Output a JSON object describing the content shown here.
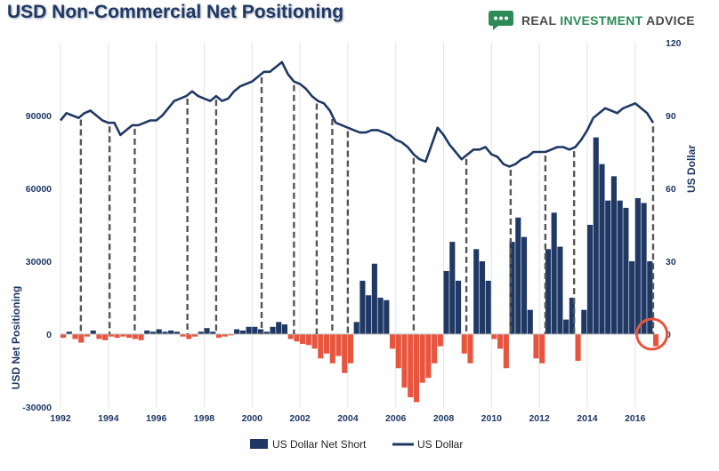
{
  "header": {
    "title": "USD Non-Commercial Net Positioning",
    "brand": {
      "word1": "REAL",
      "word2": "INVESTMENT",
      "word3": "ADVICE",
      "icon": "speech-bubble-icon"
    }
  },
  "colors": {
    "navy": "#1f3864",
    "red": "#e8553f",
    "grid": "#e3e3e3",
    "highlight": "#e8553f"
  },
  "chart_data": {
    "type": "bar+line",
    "title": "USD Non-Commercial Net Positioning",
    "xlabel": "",
    "ylabel_left": "USD Net Positioning",
    "ylabel_right": "US Dollar",
    "xlim": [
      1992,
      2016.9
    ],
    "ylim_left": [
      -30000,
      120000
    ],
    "ylim_right": [
      -30,
      120
    ],
    "x_ticks": [
      "1992",
      "1994",
      "1996",
      "1998",
      "2000",
      "2002",
      "2004",
      "2006",
      "2008",
      "2010",
      "2012",
      "2014",
      "2016"
    ],
    "y_left_ticks": [
      "-30000",
      "0",
      "30000",
      "60000",
      "90000"
    ],
    "y_right_ticks": [
      "0",
      "30",
      "60",
      "90",
      "120"
    ],
    "legend": [
      "US Dollar Net Short",
      "US Dollar"
    ],
    "series": [
      {
        "name": "US Dollar Net Short",
        "kind": "bar",
        "axis": "left",
        "x": [
          1992.0,
          1992.25,
          1992.5,
          1992.75,
          1993.0,
          1993.25,
          1993.5,
          1993.75,
          1994.0,
          1994.25,
          1994.5,
          1994.75,
          1995.0,
          1995.25,
          1995.5,
          1995.75,
          1996.0,
          1996.25,
          1996.5,
          1996.75,
          1997.0,
          1997.25,
          1997.5,
          1997.75,
          1998.0,
          1998.25,
          1998.5,
          1998.75,
          1999.0,
          1999.25,
          1999.5,
          1999.75,
          2000.0,
          2000.25,
          2000.5,
          2000.75,
          2001.0,
          2001.25,
          2001.5,
          2001.75,
          2002.0,
          2002.25,
          2002.5,
          2002.75,
          2003.0,
          2003.25,
          2003.5,
          2003.75,
          2004.0,
          2004.25,
          2004.5,
          2004.75,
          2005.0,
          2005.25,
          2005.5,
          2005.75,
          2006.0,
          2006.25,
          2006.5,
          2006.75,
          2007.0,
          2007.25,
          2007.5,
          2007.75,
          2008.0,
          2008.25,
          2008.5,
          2008.75,
          2009.0,
          2009.25,
          2009.5,
          2009.75,
          2010.0,
          2010.25,
          2010.5,
          2010.75,
          2011.0,
          2011.25,
          2011.5,
          2011.75,
          2012.0,
          2012.25,
          2012.5,
          2012.75,
          2013.0,
          2013.25,
          2013.5,
          2013.75,
          2014.0,
          2014.25,
          2014.5,
          2014.75,
          2015.0,
          2015.25,
          2015.5,
          2015.75,
          2016.0,
          2016.25,
          2016.5,
          2016.75
        ],
        "values": [
          -1500,
          1000,
          -2000,
          -3500,
          -1000,
          1500,
          -2000,
          -2500,
          -1000,
          -1500,
          -1000,
          -1500,
          -2000,
          -2500,
          1500,
          1000,
          2000,
          1000,
          1500,
          1000,
          -1000,
          -2000,
          -1000,
          1000,
          2500,
          1000,
          -1500,
          -1000,
          -500,
          2000,
          1500,
          3000,
          3000,
          2000,
          1000,
          3000,
          5000,
          4000,
          -2000,
          -3000,
          -4000,
          -4500,
          -6000,
          -10000,
          -8000,
          -12000,
          -9000,
          -16000,
          -12000,
          5000,
          22000,
          16000,
          29000,
          15000,
          14000,
          -6000,
          -14000,
          -22000,
          -26000,
          -28000,
          -20000,
          -18000,
          -12000,
          -5000,
          26000,
          38000,
          22000,
          -8000,
          -12000,
          35000,
          30000,
          22000,
          -2000,
          -6000,
          -14000,
          38000,
          48000,
          40000,
          10000,
          -10000,
          -12000,
          35000,
          50000,
          36000,
          6000,
          15000,
          -11000,
          10000,
          45000,
          81000,
          70000,
          55000,
          65000,
          55000,
          52000,
          30000,
          56000,
          54000,
          30000,
          -5000
        ]
      },
      {
        "name": "US Dollar",
        "kind": "line",
        "axis": "right",
        "x": [
          1992.0,
          1992.25,
          1992.5,
          1992.75,
          1993.0,
          1993.25,
          1993.5,
          1993.75,
          1994.0,
          1994.25,
          1994.5,
          1994.75,
          1995.0,
          1995.25,
          1995.5,
          1995.75,
          1996.0,
          1996.25,
          1996.5,
          1996.75,
          1997.0,
          1997.25,
          1997.5,
          1997.75,
          1998.0,
          1998.25,
          1998.5,
          1998.75,
          1999.0,
          1999.25,
          1999.5,
          1999.75,
          2000.0,
          2000.25,
          2000.5,
          2000.75,
          2001.0,
          2001.25,
          2001.5,
          2001.75,
          2002.0,
          2002.25,
          2002.5,
          2002.75,
          2003.0,
          2003.25,
          2003.5,
          2003.75,
          2004.0,
          2004.25,
          2004.5,
          2004.75,
          2005.0,
          2005.25,
          2005.5,
          2005.75,
          2006.0,
          2006.25,
          2006.5,
          2006.75,
          2007.0,
          2007.25,
          2007.5,
          2007.75,
          2008.0,
          2008.25,
          2008.5,
          2008.75,
          2009.0,
          2009.25,
          2009.5,
          2009.75,
          2010.0,
          2010.25,
          2010.5,
          2010.75,
          2011.0,
          2011.25,
          2011.5,
          2011.75,
          2012.0,
          2012.25,
          2012.5,
          2012.75,
          2013.0,
          2013.25,
          2013.5,
          2013.75,
          2014.0,
          2014.25,
          2014.5,
          2014.75,
          2015.0,
          2015.25,
          2015.5,
          2015.75,
          2016.0,
          2016.25,
          2016.5,
          2016.75
        ],
        "values": [
          88,
          91,
          90,
          89,
          91,
          92,
          90,
          88,
          87,
          87,
          82,
          84,
          86,
          86,
          87,
          88,
          88,
          90,
          93,
          96,
          97,
          98,
          100,
          98,
          97,
          96,
          98,
          96,
          97,
          100,
          102,
          103,
          104,
          106,
          108,
          108,
          110,
          112,
          107,
          104,
          103,
          101,
          98,
          96,
          95,
          92,
          87,
          86,
          85,
          84,
          83,
          83,
          84,
          84,
          83,
          82,
          80,
          79,
          77,
          74,
          72,
          71,
          78,
          85,
          82,
          78,
          75,
          72,
          74,
          76,
          76,
          77,
          74,
          73,
          70,
          69,
          70,
          72,
          73,
          75,
          75,
          75,
          76,
          77,
          77,
          76,
          77,
          80,
          84,
          89,
          91,
          93,
          92,
          91,
          93,
          94,
          95,
          93,
          91,
          87
        ]
      }
    ],
    "annotation": {
      "marker": "circle",
      "x": 2016.7,
      "y_left": 0
    },
    "dashed_markers_at_x": [
      1992.85,
      1994.05,
      1995.1,
      1997.3,
      1998.5,
      2000.4,
      2001.75,
      2002.7,
      2003.35,
      2004.0,
      2006.75,
      2008.95,
      2010.8,
      2012.25,
      2013.45,
      2016.75
    ]
  }
}
